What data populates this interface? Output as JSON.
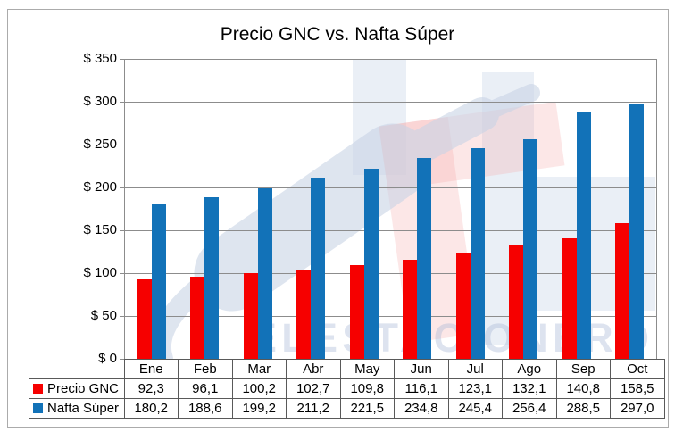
{
  "window": {
    "background": "#ffffff",
    "frame_border_color": "#ababab",
    "grid_color": "#8c8c8c",
    "table_border_color": "#595959"
  },
  "chart_data": {
    "type": "bar",
    "title": "Precio GNC vs. Nafta Súper",
    "categories": [
      "Ene",
      "Feb",
      "Mar",
      "Abr",
      "May",
      "Jun",
      "Jul",
      "Ago",
      "Sep",
      "Oct"
    ],
    "series": [
      {
        "name": "Precio GNC",
        "color": "#f60000",
        "values": [
          92.3,
          96.1,
          100.2,
          102.7,
          109.8,
          116.1,
          123.1,
          132.1,
          140.8,
          158.5
        ],
        "display": [
          "92,3",
          "96,1",
          "100,2",
          "102,7",
          "109,8",
          "116,1",
          "123,1",
          "132,1",
          "140,8",
          "158,5"
        ]
      },
      {
        "name": "Nafta Súper",
        "color": "#1272b8",
        "values": [
          180.2,
          188.6,
          199.2,
          211.2,
          221.5,
          234.8,
          245.4,
          256.4,
          288.5,
          297.0
        ],
        "display": [
          "180,2",
          "188,6",
          "199,2",
          "211,2",
          "221,5",
          "234,8",
          "245,4",
          "256,4",
          "288,5",
          "297,0"
        ]
      }
    ],
    "y_axis": {
      "min": 0,
      "max": 350,
      "step": 50,
      "tick_labels": [
        "$ 350",
        "$ 300",
        "$ 250",
        "$ 200",
        "$ 150",
        "$ 100",
        "$ 50",
        "$ 0"
      ]
    },
    "grid": true,
    "legend_position": "table-left"
  },
  "watermark": {
    "text": "ELESTACIONERO"
  }
}
